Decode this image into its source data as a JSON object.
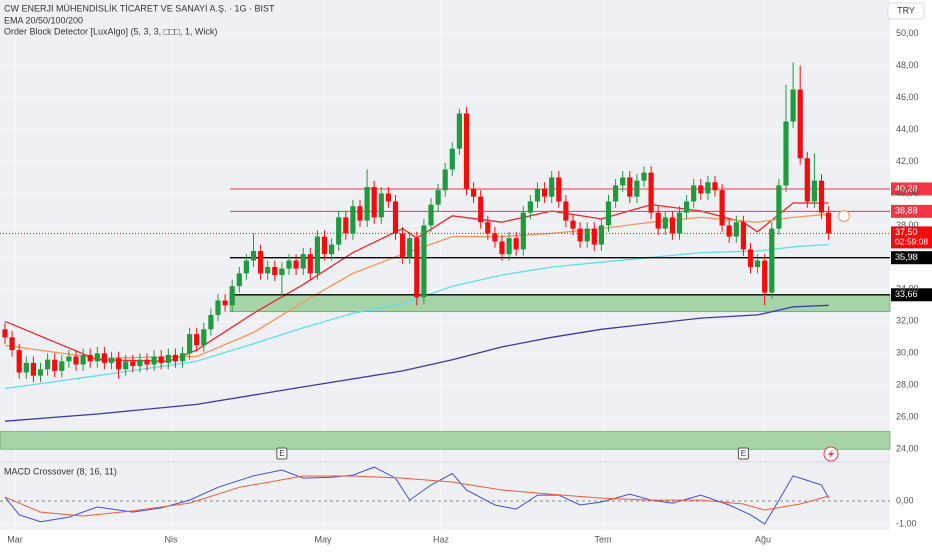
{
  "chart_data": {
    "type": "candlestick",
    "title": "CW ENERJİ MÜHENDİSLİK TİCARET VE SANAYİ A.Ş. · 1G · BIST",
    "indicators": [
      "EMA 20/50/100/200",
      "Order Block Detector [LuxAlgo] (5, 3, 3, □□□, 1, Wick)"
    ],
    "currency": "TRY",
    "x_labels": [
      "Mar",
      "Nis",
      "May",
      "Haz",
      "Tem",
      "Ağu"
    ],
    "up_color": "#1f9a3f",
    "down_color": "#f20d0d",
    "open": [
      31.5,
      31.0,
      30.2,
      28.8,
      29.4,
      28.6,
      29.0,
      29.6,
      28.9,
      29.5,
      29.8,
      29.3,
      29.9,
      29.5,
      30.0,
      29.4,
      29.7,
      29.0,
      29.5,
      29.2,
      29.6,
      29.3,
      29.8,
      29.4,
      29.9,
      29.5,
      30.0,
      31.2,
      30.5,
      31.5,
      32.4,
      33.3,
      33.0,
      34.2,
      35.0,
      35.8,
      36.4,
      35.0,
      35.4,
      34.9,
      35.3,
      35.8,
      35.3,
      36.2,
      35.0,
      37.3,
      36.2,
      36.8,
      38.5,
      37.5,
      39.2,
      38.3,
      40.4,
      38.5,
      40.0,
      39.5,
      37.5,
      36.0,
      37.2,
      33.5,
      38.0,
      39.3,
      40.2,
      41.5,
      42.8,
      45.0,
      40.3,
      39.8,
      38.2,
      37.5,
      37.0,
      36.2,
      37.2,
      36.5,
      38.8,
      39.5,
      40.3,
      39.8,
      41.0,
      39.5,
      38.3,
      37.8,
      37.0,
      37.8,
      36.8,
      38.0,
      39.5,
      40.5,
      41.0,
      39.8,
      40.8,
      41.3,
      38.8,
      37.8,
      38.5,
      37.5,
      38.8,
      39.5,
      40.5,
      40.0,
      40.7,
      40.2,
      38.0,
      37.3,
      38.2,
      36.5,
      35.4,
      35.8,
      33.8,
      37.8,
      40.5,
      44.5,
      46.5,
      42.2,
      39.5,
      40.8,
      38.8
    ],
    "high": [
      31.9,
      31.4,
      30.6,
      29.8,
      29.8,
      29.4,
      30.0,
      30.0,
      29.9,
      30.2,
      30.2,
      30.3,
      30.3,
      30.4,
      30.4,
      30.1,
      30.1,
      29.9,
      29.9,
      30.0,
      30.0,
      30.2,
      30.2,
      30.3,
      30.3,
      30.4,
      31.6,
      31.6,
      31.9,
      32.8,
      33.7,
      33.7,
      34.6,
      35.4,
      36.2,
      37.5,
      36.8,
      35.8,
      35.8,
      35.7,
      36.2,
      36.2,
      36.6,
      36.6,
      37.7,
      37.7,
      37.2,
      38.9,
      38.9,
      39.6,
      39.6,
      41.5,
      40.8,
      40.4,
      40.4,
      39.9,
      37.9,
      37.6,
      37.6,
      38.4,
      39.7,
      40.6,
      41.9,
      43.2,
      45.3,
      45.4,
      40.7,
      40.2,
      38.6,
      37.9,
      37.4,
      37.6,
      37.6,
      39.2,
      39.9,
      40.7,
      40.7,
      41.4,
      41.4,
      39.9,
      38.7,
      38.2,
      38.2,
      38.2,
      38.4,
      39.9,
      40.9,
      41.4,
      41.4,
      41.2,
      41.7,
      41.7,
      39.2,
      38.9,
      38.9,
      39.2,
      39.9,
      40.9,
      40.9,
      41.1,
      41.1,
      40.6,
      38.4,
      38.6,
      38.6,
      36.9,
      36.2,
      36.2,
      38.2,
      40.9,
      46.8,
      48.2,
      48.0,
      42.6,
      42.5,
      41.2,
      39.2
    ],
    "low": [
      30.6,
      29.8,
      28.4,
      28.4,
      28.2,
      28.2,
      28.6,
      28.5,
      28.5,
      29.1,
      28.9,
      28.9,
      29.1,
      29.1,
      29.0,
      29.0,
      28.4,
      28.6,
      28.8,
      28.8,
      28.9,
      28.9,
      29.0,
      29.0,
      29.1,
      29.1,
      29.6,
      30.1,
      30.1,
      31.1,
      32.0,
      32.6,
      32.6,
      33.8,
      34.6,
      35.4,
      34.6,
      34.6,
      34.5,
      33.6,
      34.9,
      34.9,
      34.9,
      34.6,
      34.6,
      35.8,
      35.8,
      36.4,
      37.1,
      37.1,
      37.9,
      37.9,
      38.1,
      38.1,
      39.1,
      37.1,
      35.6,
      35.6,
      33.0,
      33.1,
      37.6,
      38.9,
      39.8,
      41.1,
      42.4,
      39.9,
      39.4,
      37.8,
      37.1,
      36.6,
      35.8,
      35.8,
      36.1,
      36.1,
      38.4,
      39.1,
      39.4,
      39.4,
      39.1,
      37.9,
      37.4,
      36.6,
      36.6,
      36.4,
      36.4,
      37.6,
      39.1,
      40.1,
      39.4,
      39.4,
      40.4,
      38.4,
      37.4,
      37.4,
      37.1,
      37.1,
      38.4,
      39.1,
      39.6,
      39.6,
      39.8,
      37.6,
      36.9,
      36.9,
      36.1,
      35.0,
      35.0,
      33.0,
      33.4,
      37.4,
      40.1,
      44.1,
      41.8,
      39.1,
      39.1,
      38.4,
      37.1
    ],
    "close": [
      31.0,
      30.2,
      28.8,
      29.4,
      28.6,
      29.0,
      29.6,
      28.9,
      29.5,
      29.8,
      29.3,
      29.9,
      29.5,
      30.0,
      29.4,
      29.7,
      29.0,
      29.5,
      29.2,
      29.6,
      29.3,
      29.8,
      29.4,
      29.9,
      29.5,
      30.0,
      31.2,
      30.5,
      31.5,
      32.4,
      33.3,
      33.0,
      34.2,
      35.0,
      35.8,
      36.4,
      35.0,
      35.4,
      34.9,
      35.3,
      35.8,
      35.3,
      36.2,
      35.0,
      37.3,
      36.2,
      36.8,
      38.5,
      37.5,
      39.2,
      38.3,
      40.4,
      38.5,
      40.0,
      39.5,
      37.5,
      36.0,
      37.2,
      33.5,
      38.0,
      39.3,
      40.2,
      41.5,
      42.8,
      45.0,
      40.3,
      39.8,
      38.2,
      37.5,
      37.0,
      36.2,
      37.2,
      36.5,
      38.8,
      39.5,
      40.3,
      39.8,
      41.0,
      39.5,
      38.3,
      37.8,
      37.0,
      37.8,
      36.8,
      38.0,
      39.5,
      40.5,
      41.0,
      39.8,
      40.8,
      41.3,
      38.8,
      37.8,
      38.5,
      37.5,
      38.8,
      39.5,
      40.5,
      40.0,
      40.7,
      40.2,
      38.0,
      37.3,
      38.2,
      36.5,
      35.4,
      35.8,
      33.8,
      37.8,
      40.5,
      44.5,
      46.5,
      42.2,
      39.5,
      40.8,
      38.8,
      37.5
    ],
    "ema": [
      {
        "color": "#e8262b",
        "x": [
          0,
          13,
          23,
          27,
          35,
          42,
          49,
          56,
          58,
          63,
          70,
          77,
          84,
          91,
          98,
          104,
          106,
          111,
          116
        ],
        "values": [
          32.0,
          29.6,
          29.5,
          30.2,
          32.5,
          34.3,
          36.3,
          37.8,
          37.2,
          38.6,
          38.2,
          38.9,
          38.4,
          39.3,
          38.9,
          38.2,
          37.6,
          39.4,
          39.4
        ]
      },
      {
        "color": "#f7955e",
        "x": [
          0,
          13,
          27,
          35,
          42,
          49,
          56,
          63,
          70,
          77,
          84,
          91,
          98,
          106,
          111,
          116
        ],
        "values": [
          30.5,
          29.7,
          29.8,
          31.3,
          33.2,
          35.0,
          36.2,
          37.3,
          37.3,
          37.5,
          37.8,
          38.2,
          38.5,
          38.2,
          38.5,
          38.7
        ]
      },
      {
        "color": "#5ee0e6",
        "x": [
          0,
          13,
          27,
          35,
          42,
          49,
          56,
          63,
          70,
          77,
          84,
          91,
          98,
          106,
          112,
          116
        ],
        "values": [
          27.8,
          28.6,
          29.5,
          30.6,
          31.6,
          32.5,
          33.1,
          34.2,
          34.9,
          35.4,
          35.7,
          36.0,
          36.3,
          36.4,
          36.7,
          36.8
        ]
      },
      {
        "color": "#3a3aa8",
        "x": [
          0,
          13,
          27,
          42,
          56,
          63,
          70,
          77,
          84,
          98,
          106,
          111,
          116
        ],
        "values": [
          25.75,
          26.2,
          26.8,
          27.9,
          28.9,
          29.6,
          30.4,
          31.0,
          31.5,
          32.2,
          32.4,
          32.9,
          33.0
        ]
      }
    ],
    "levels": [
      {
        "value": 40.28,
        "label": "40,28",
        "color": "#f23645"
      },
      {
        "value": 38.88,
        "label": "38,88",
        "color": "#f23645"
      },
      {
        "value": 35.98,
        "label": "35,98",
        "color": "#000000"
      },
      {
        "value": 33.66,
        "label": "33,66",
        "color": "#000000"
      }
    ],
    "order_blocks": [
      {
        "top": 33.66,
        "bottom": 32.6,
        "color": "#8fc98f"
      },
      {
        "top": 25.1,
        "bottom": 24.0,
        "color": "#8fc98f"
      }
    ],
    "last_price": {
      "value": 37.5,
      "label": "37,50",
      "countdown": "02:59:08",
      "color": "#f20d0d"
    },
    "events": [
      {
        "index": 39,
        "label": "E"
      },
      {
        "index": 104,
        "label": "E"
      }
    ],
    "ylim": [
      23.2,
      52.1
    ],
    "yticks": [
      {
        "value": 24,
        "label": "24,00"
      },
      {
        "value": 26,
        "label": "26,00"
      },
      {
        "value": 28,
        "label": "28,00"
      },
      {
        "value": 30,
        "label": "30,00"
      },
      {
        "value": 32,
        "label": "32,00"
      },
      {
        "value": 34,
        "label": "34,00"
      },
      {
        "value": 36,
        "label": "36,00"
      },
      {
        "value": 38,
        "label": "38,00"
      },
      {
        "value": 40,
        "label": "40,00"
      },
      {
        "value": 42,
        "label": "42,00"
      },
      {
        "value": 44,
        "label": "44,00"
      },
      {
        "value": 46,
        "label": "46,00"
      },
      {
        "value": 48,
        "label": "48,00"
      },
      {
        "value": 50,
        "label": "50,00"
      }
    ],
    "macd": {
      "title": "MACD Crossover (8, 16, 11)",
      "ylim": [
        -1.26,
        1.7
      ],
      "yticks": [
        {
          "value": 0,
          "label": "0,00"
        },
        {
          "value": -1,
          "label": "-1,00"
        }
      ],
      "series": [
        {
          "color": "#3f51d8",
          "x": [
            0,
            2,
            5,
            9,
            13,
            18,
            22,
            26,
            30,
            35,
            39,
            42,
            46,
            49,
            52,
            55,
            57,
            60,
            63,
            65,
            69,
            72,
            75,
            78,
            81,
            84,
            88,
            91,
            94,
            98,
            102,
            105,
            107,
            109,
            111,
            113,
            115,
            116
          ],
          "values": [
            0.17,
            -0.6,
            -0.9,
            -0.7,
            -0.26,
            -0.48,
            -0.3,
            0.04,
            0.6,
            1.1,
            1.35,
            1.0,
            1.04,
            1.13,
            1.48,
            1.0,
            0.04,
            0.7,
            1.2,
            0.48,
            -0.17,
            -0.35,
            0.26,
            0.26,
            -0.17,
            -0.04,
            0.3,
            0.04,
            -0.09,
            0.26,
            -0.17,
            -0.6,
            -1.0,
            0.04,
            1.1,
            0.9,
            0.7,
            0.13
          ]
        },
        {
          "color": "#f25a3c",
          "x": [
            0,
            5,
            11,
            18,
            26,
            33,
            42,
            49,
            56,
            63,
            70,
            77,
            84,
            91,
            98,
            104,
            107,
            112,
            116
          ],
          "values": [
            0.17,
            -0.48,
            -0.65,
            -0.43,
            -0.09,
            0.6,
            1.09,
            1.09,
            1.0,
            0.83,
            0.48,
            0.3,
            0.13,
            0.04,
            0.04,
            -0.13,
            -0.39,
            -0.13,
            0.22
          ]
        }
      ]
    }
  }
}
